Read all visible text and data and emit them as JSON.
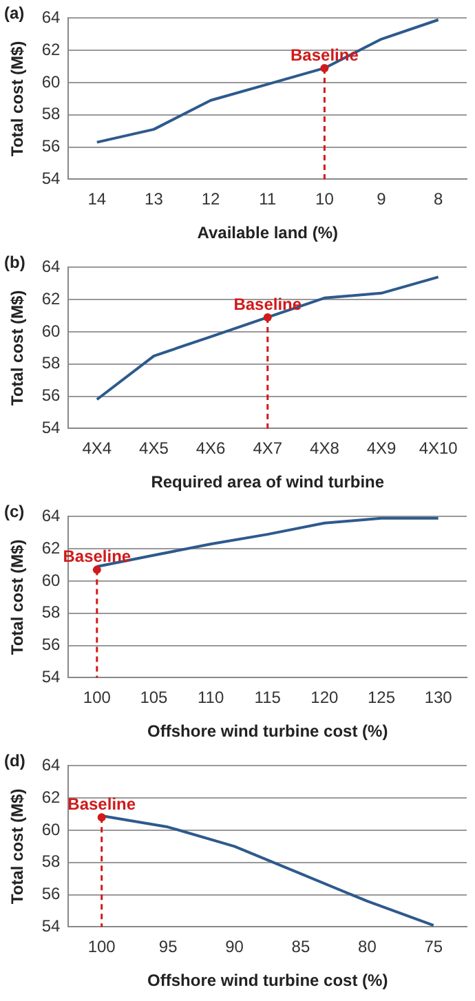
{
  "chart_data": [
    {
      "type": "line",
      "title": "(a)",
      "xlabel": "Available land (%)",
      "ylabel": "Total cost (M$)",
      "categories": [
        "14",
        "13",
        "12",
        "11",
        "10",
        "9",
        "8"
      ],
      "series": [
        {
          "color": "#2e5a8c",
          "values": [
            56.3,
            57.1,
            58.9,
            59.9,
            60.9,
            62.7,
            63.9
          ]
        }
      ],
      "ylim": [
        54,
        64
      ],
      "yticks": [
        54,
        56,
        58,
        60,
        62,
        64
      ],
      "grid": "y",
      "legend": false,
      "marker": "none",
      "annotations": [
        {
          "text": "Baseline",
          "x": "10",
          "y": 60.9
        }
      ]
    },
    {
      "type": "line",
      "title": "(b)",
      "xlabel": "Required area of wind turbine",
      "ylabel": "Total cost (M$)",
      "categories": [
        "4X4",
        "4X5",
        "4X6",
        "4X7",
        "4X8",
        "4X9",
        "4X10"
      ],
      "series": [
        {
          "color": "#2e5a8c",
          "values": [
            55.8,
            58.5,
            59.7,
            60.9,
            62.1,
            62.4,
            63.4
          ]
        }
      ],
      "ylim": [
        54,
        64
      ],
      "yticks": [
        54,
        56,
        58,
        60,
        62,
        64
      ],
      "grid": "y",
      "legend": false,
      "marker": "none",
      "annotations": [
        {
          "text": "Baseline",
          "x": "4X7",
          "y": 60.9
        }
      ]
    },
    {
      "type": "line",
      "title": "(c)",
      "xlabel": "Offshore wind turbine cost (%)",
      "ylabel": "Total cost (M$)",
      "categories": [
        "100",
        "105",
        "110",
        "115",
        "120",
        "125",
        "130"
      ],
      "series": [
        {
          "color": "#2e5a8c",
          "values": [
            60.9,
            61.6,
            62.3,
            62.9,
            63.6,
            63.9,
            63.9
          ]
        }
      ],
      "ylim": [
        54,
        64
      ],
      "yticks": [
        54,
        56,
        58,
        60,
        62,
        64
      ],
      "grid": "y",
      "legend": false,
      "marker": "none",
      "annotations": [
        {
          "text": "Baseline",
          "x": "100",
          "y": 60.7
        }
      ]
    },
    {
      "type": "line",
      "title": "(d)",
      "xlabel": "Offshore wind turbine cost (%)",
      "ylabel": "Total cost (M$)",
      "categories": [
        "100",
        "95",
        "90",
        "85",
        "80",
        "75"
      ],
      "series": [
        {
          "color": "#2e5a8c",
          "values": [
            60.9,
            60.2,
            59.0,
            57.3,
            55.6,
            54.1
          ]
        }
      ],
      "ylim": [
        54,
        64
      ],
      "yticks": [
        54,
        56,
        58,
        60,
        62,
        64
      ],
      "grid": "y",
      "legend": false,
      "marker": "none",
      "annotations": [
        {
          "text": "Baseline",
          "x": "100",
          "y": 60.8
        }
      ]
    }
  ]
}
